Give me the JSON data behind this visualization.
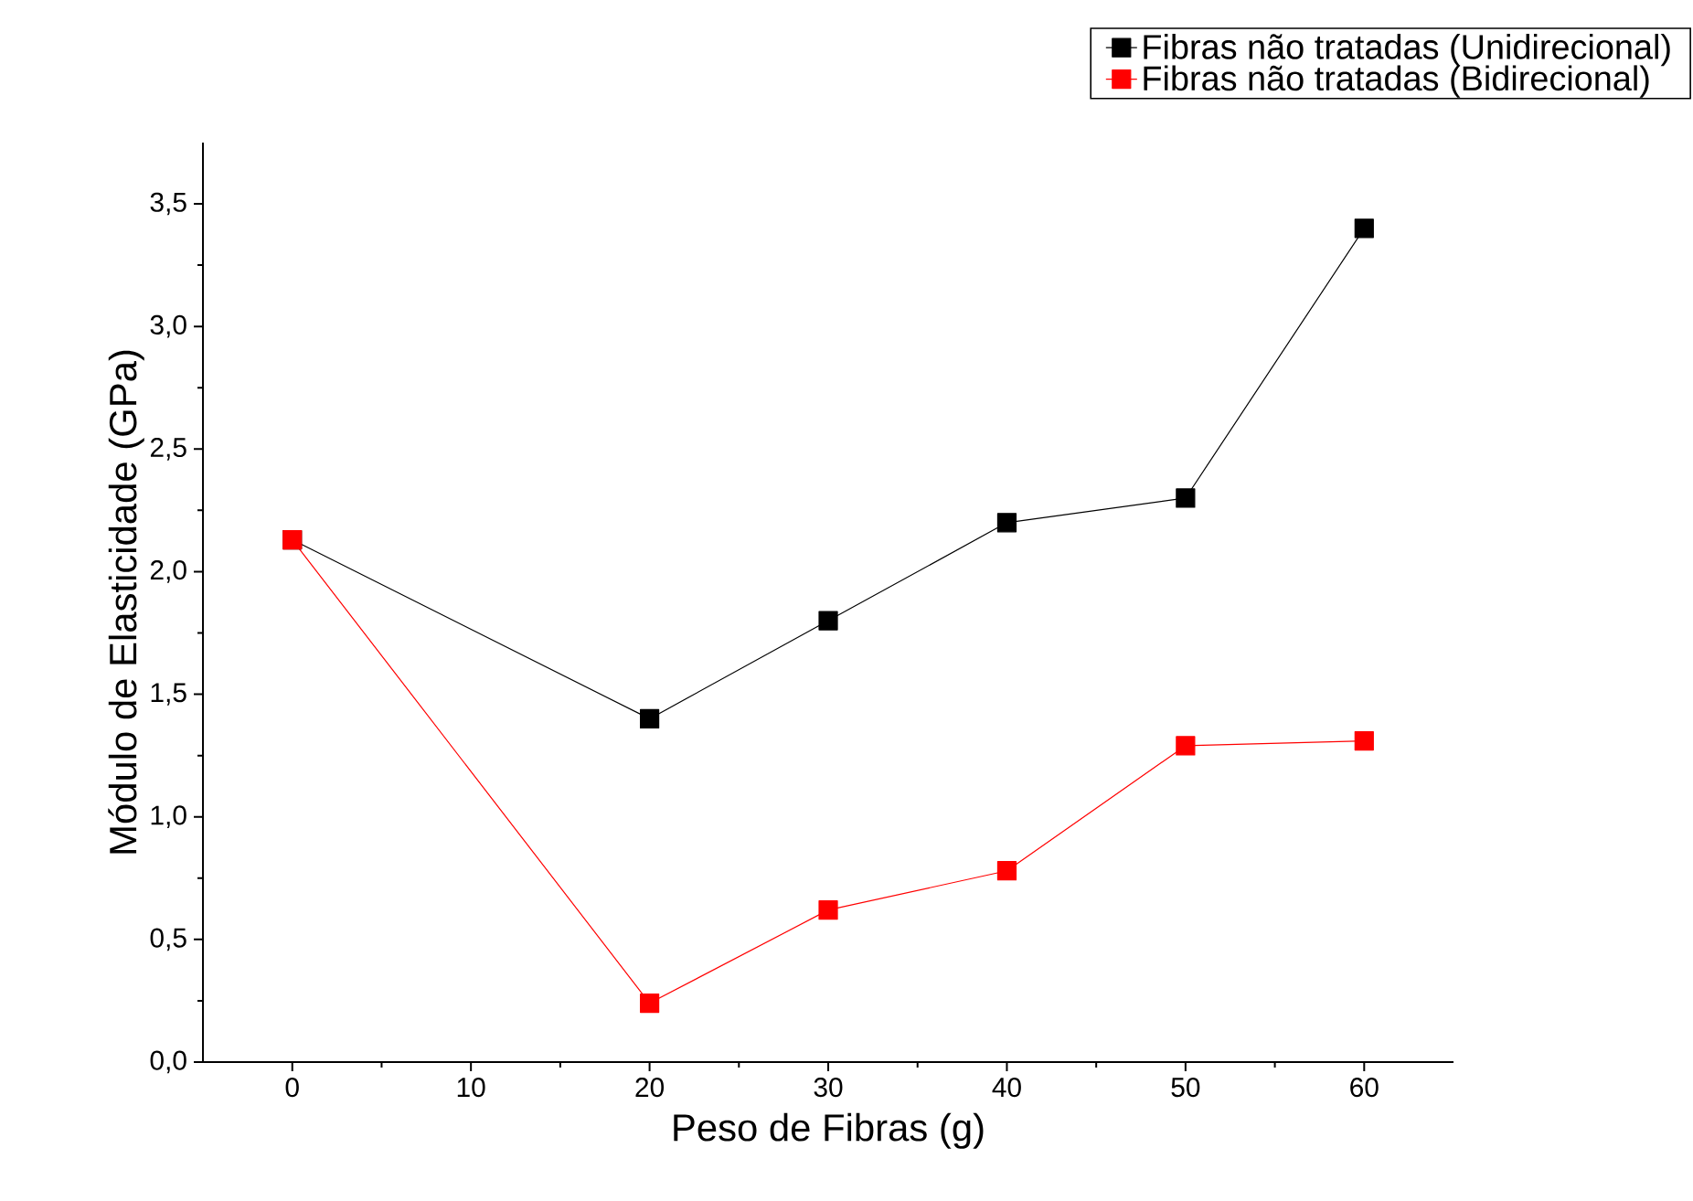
{
  "chart_data": {
    "type": "line",
    "xlabel": "Peso de Fibras (g)",
    "ylabel": "Módulo de Elasticidade (GPa)",
    "x": [
      0,
      20,
      30,
      40,
      50,
      60
    ],
    "series": [
      {
        "name": "Fibras não tratadas (Unidirecional)",
        "color": "#000000",
        "values": [
          2.13,
          1.4,
          1.8,
          2.2,
          2.3,
          3.4
        ]
      },
      {
        "name": "Fibras não tratadas (Bidirecional)",
        "color": "#ff0000",
        "values": [
          2.13,
          0.24,
          0.62,
          0.78,
          1.29,
          1.31
        ]
      }
    ],
    "xlim": [
      -5,
      65
    ],
    "xticks": [
      0,
      10,
      20,
      30,
      40,
      50,
      60
    ],
    "ylim": [
      0,
      3.75
    ],
    "yticks": [
      {
        "value": 0,
        "label": "0,0"
      },
      {
        "value": 0.5,
        "label": "0,5"
      },
      {
        "value": 1,
        "label": "1,0"
      },
      {
        "value": 1.5,
        "label": "1,5"
      },
      {
        "value": 2,
        "label": "2,0"
      },
      {
        "value": 2.5,
        "label": "2,5"
      },
      {
        "value": 3,
        "label": "3,0"
      },
      {
        "value": 3.5,
        "label": "3,5"
      }
    ],
    "grid": false,
    "legend": "top right",
    "marker": "square",
    "line_style": "solid"
  }
}
